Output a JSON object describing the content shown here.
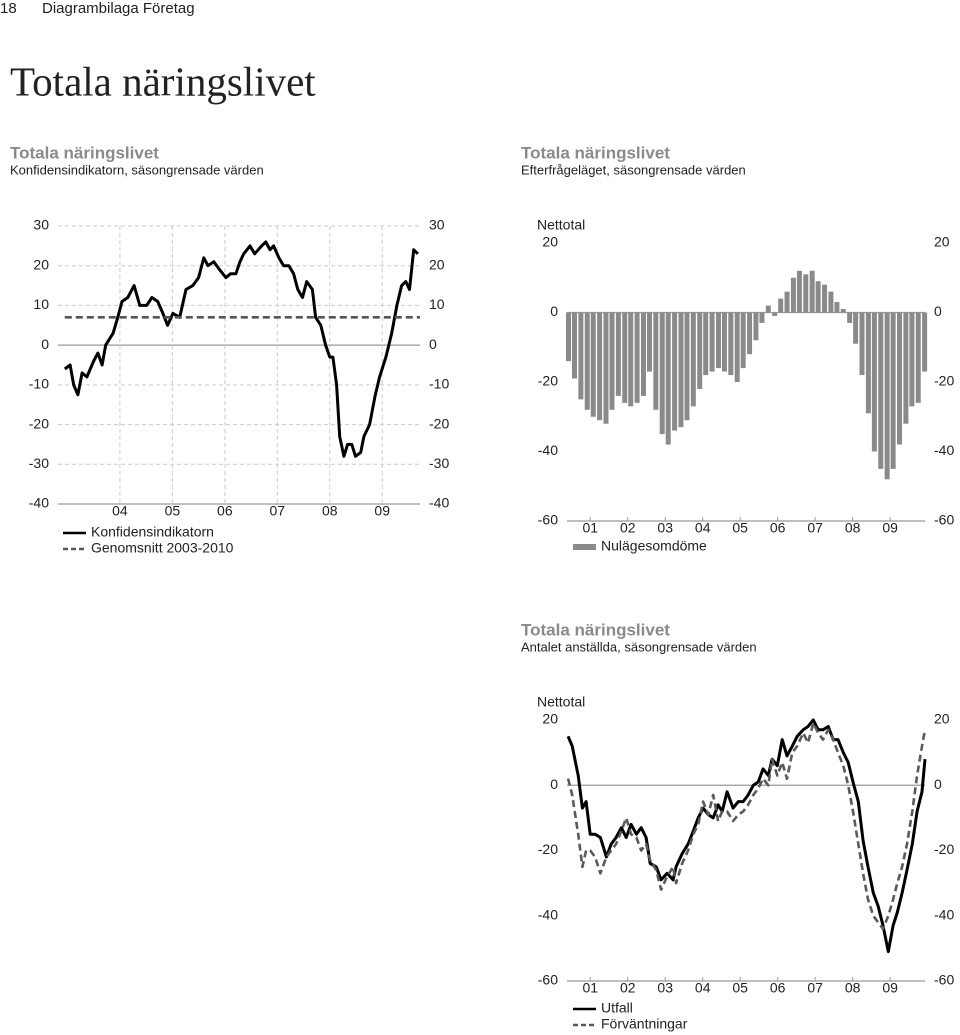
{
  "header": {
    "page_number": "18",
    "section": "Diagrambilaga Företag",
    "title": "Totala näringslivet"
  },
  "chart_data": [
    {
      "type": "line",
      "title": "Totala näringslivet",
      "subtitle": "Konfidensindikatorn, säsongrensade värden",
      "xlim": [
        2003.32,
        2010.22
      ],
      "xticks": [
        {
          "value": 2004.5,
          "label": "04"
        },
        {
          "value": 2005.5,
          "label": "05"
        },
        {
          "value": 2006.5,
          "label": "06"
        },
        {
          "value": 2007.5,
          "label": "07"
        },
        {
          "value": 2008.5,
          "label": "08"
        },
        {
          "value": 2009.5,
          "label": "09"
        }
      ],
      "ylim": [
        -40,
        30
      ],
      "yticks": [
        30,
        20,
        10,
        0,
        -10,
        -20,
        -30,
        -40
      ],
      "y2lim": [
        -40,
        30
      ],
      "y2ticks": [
        30,
        20,
        10,
        0,
        -10,
        -20,
        -30,
        -40
      ],
      "grid": true,
      "series": [
        {
          "name": "Konfidensindikatorn",
          "color": "#000000",
          "line_style": "solid",
          "x": [
            2003.45,
            2003.55,
            2003.62,
            2003.7,
            2003.78,
            2003.87,
            2004.0,
            2004.08,
            2004.16,
            2004.23,
            2004.37,
            2004.46,
            2004.54,
            2004.65,
            2004.77,
            2004.88,
            2005.01,
            2005.11,
            2005.22,
            2005.32,
            2005.41,
            2005.51,
            2005.64,
            2005.76,
            2005.89,
            2006.0,
            2006.1,
            2006.18,
            2006.29,
            2006.4,
            2006.52,
            2006.61,
            2006.71,
            2006.79,
            2006.86,
            2006.98,
            2007.07,
            2007.2,
            2007.28,
            2007.36,
            2007.43,
            2007.53,
            2007.62,
            2007.72,
            2007.81,
            2007.89,
            2007.98,
            2008.06,
            2008.17,
            2008.23,
            2008.33,
            2008.42,
            2008.5,
            2008.56,
            2008.63,
            2008.69,
            2008.77,
            2008.84,
            2008.92,
            2008.99,
            2009.09,
            2009.15,
            2009.26,
            2009.36,
            2009.45,
            2009.57,
            2009.68,
            2009.78,
            2009.87,
            2009.95,
            2010.02,
            2010.1,
            2010.18
          ],
          "values": [
            -6,
            -5,
            -10,
            -12.5,
            -7,
            -8,
            -4,
            -2,
            -5,
            0,
            3,
            7,
            11,
            12,
            15,
            10,
            10,
            12,
            11,
            8,
            5,
            8,
            7,
            14,
            15,
            17,
            22,
            20,
            21,
            19,
            17,
            18,
            18,
            21,
            23,
            25,
            23,
            25,
            26,
            24,
            25,
            22,
            20,
            20,
            18,
            14,
            12,
            16,
            14,
            7,
            5,
            0,
            -3,
            -3,
            -10,
            -23,
            -28,
            -25,
            -25,
            -28,
            -27,
            -23,
            -20,
            -13,
            -8,
            -3,
            3,
            10,
            15,
            16,
            14,
            24,
            23
          ]
        },
        {
          "name": "Genomsnitt 2003-2010",
          "color": "#555555",
          "line_style": "dashed",
          "x": [
            2003.45,
            2010.22
          ],
          "values": [
            7,
            7
          ]
        }
      ]
    },
    {
      "type": "bar",
      "title": "Totala näringslivet",
      "subtitle": "Efterfrågeläget, säsongrensade värden",
      "y_label": "Nettotal",
      "xlim": [
        2000.88,
        2010.43
      ],
      "xticks": [
        {
          "value": 2001.5,
          "label": "01"
        },
        {
          "value": 2002.5,
          "label": "02"
        },
        {
          "value": 2003.5,
          "label": "03"
        },
        {
          "value": 2004.5,
          "label": "04"
        },
        {
          "value": 2005.5,
          "label": "05"
        },
        {
          "value": 2006.5,
          "label": "06"
        },
        {
          "value": 2007.5,
          "label": "07"
        },
        {
          "value": 2008.5,
          "label": "08"
        },
        {
          "value": 2009.5,
          "label": "09"
        }
      ],
      "ylim": [
        -60,
        20
      ],
      "yticks": [
        20,
        0,
        -20,
        -40,
        -60
      ],
      "y2lim": [
        -60,
        20
      ],
      "y2ticks": [
        20,
        0,
        -20,
        -40,
        -60
      ],
      "grid": false,
      "series": [
        {
          "name": "Nulägesomdöme",
          "color": "#8a8a8a",
          "x": [
            2000.92,
            2001.08,
            2001.25,
            2001.42,
            2001.58,
            2001.75,
            2001.92,
            2002.08,
            2002.25,
            2002.42,
            2002.58,
            2002.75,
            2002.92,
            2003.08,
            2003.25,
            2003.42,
            2003.58,
            2003.75,
            2003.92,
            2004.08,
            2004.25,
            2004.42,
            2004.58,
            2004.75,
            2004.92,
            2005.08,
            2005.25,
            2005.42,
            2005.58,
            2005.75,
            2005.92,
            2006.08,
            2006.25,
            2006.42,
            2006.58,
            2006.75,
            2006.92,
            2007.08,
            2007.25,
            2007.42,
            2007.58,
            2007.75,
            2007.92,
            2008.08,
            2008.25,
            2008.42,
            2008.58,
            2008.75,
            2008.92,
            2009.08,
            2009.25,
            2009.42,
            2009.58,
            2009.75,
            2009.92,
            2010.08,
            2010.25,
            2010.42
          ],
          "values": [
            -14,
            -19,
            -25,
            -28,
            -30,
            -31,
            -32,
            -28,
            -24,
            -26,
            -27,
            -26,
            -24,
            -17,
            -28,
            -35,
            -38,
            -34,
            -33,
            -31,
            -27,
            -22,
            -18,
            -17,
            -16,
            -17,
            -18,
            -20,
            -16,
            -12,
            -8,
            -3,
            2,
            -1,
            4,
            6,
            10,
            12,
            11,
            12,
            9,
            8,
            6,
            3,
            1,
            -3,
            -9,
            -18,
            -29,
            -40,
            -45,
            -48,
            -45,
            -38,
            -32,
            -27,
            -26,
            -17
          ]
        }
      ]
    },
    {
      "type": "line",
      "title": "Totala näringslivet",
      "subtitle": "Antalet anställda, säsongrensade värden",
      "y_label": "Nettotal",
      "xlim": [
        2000.88,
        2010.43
      ],
      "xticks": [
        {
          "value": 2001.5,
          "label": "01"
        },
        {
          "value": 2002.5,
          "label": "02"
        },
        {
          "value": 2003.5,
          "label": "03"
        },
        {
          "value": 2004.5,
          "label": "04"
        },
        {
          "value": 2005.5,
          "label": "05"
        },
        {
          "value": 2006.5,
          "label": "06"
        },
        {
          "value": 2007.5,
          "label": "07"
        },
        {
          "value": 2008.5,
          "label": "08"
        },
        {
          "value": 2009.5,
          "label": "09"
        }
      ],
      "ylim": [
        -60,
        20
      ],
      "yticks": [
        20,
        0,
        -20,
        -40,
        -60
      ],
      "y2lim": [
        -60,
        20
      ],
      "y2ticks": [
        20,
        0,
        -20,
        -40,
        -60
      ],
      "grid": false,
      "x": [
        2000.91,
        2001.02,
        2001.18,
        2001.29,
        2001.39,
        2001.5,
        2001.63,
        2001.77,
        2001.93,
        2002.06,
        2002.19,
        2002.33,
        2002.46,
        2002.59,
        2002.73,
        2002.86,
        2002.99,
        2003.1,
        2003.26,
        2003.39,
        2003.55,
        2003.71,
        2003.79,
        2003.95,
        2004.11,
        2004.25,
        2004.38,
        2004.51,
        2004.65,
        2004.78,
        2004.91,
        2005.02,
        2005.15,
        2005.31,
        2005.45,
        2005.58,
        2005.71,
        2005.85,
        2005.98,
        2006.11,
        2006.25,
        2006.35,
        2006.49,
        2006.62,
        2006.75,
        2006.89,
        2007.02,
        2007.18,
        2007.31,
        2007.45,
        2007.58,
        2007.71,
        2007.85,
        2007.98,
        2008.11,
        2008.25,
        2008.38,
        2008.51,
        2008.65,
        2008.78,
        2008.91,
        2009.05,
        2009.18,
        2009.31,
        2009.45,
        2009.58,
        2009.69,
        2009.82,
        2009.95,
        2010.09,
        2010.22,
        2010.35,
        2010.43
      ],
      "series": [
        {
          "name": "Utfall",
          "color": "#000000",
          "line_style": "solid",
          "values": [
            15,
            12,
            3,
            -7,
            -5,
            -15,
            -15,
            -16,
            -22,
            -18,
            -16,
            -13,
            -16,
            -12,
            -15,
            -13,
            -16,
            -24,
            -25,
            -29,
            -27,
            -29,
            -25,
            -21,
            -18,
            -14,
            -10,
            -7,
            -9,
            -10,
            -6,
            -8,
            -2,
            -7,
            -5,
            -5,
            -3,
            0,
            1,
            5,
            3,
            8,
            6,
            14,
            9,
            12,
            15,
            17,
            18,
            20,
            17,
            17,
            18,
            14,
            14,
            10,
            7,
            1,
            -5,
            -17,
            -25,
            -33,
            -37,
            -43,
            -51,
            -43,
            -39,
            -33,
            -26,
            -18,
            -8,
            -2,
            8
          ]
        },
        {
          "name": "Förväntningar",
          "color": "#5a5a5a",
          "line_style": "dashed",
          "values": [
            2,
            -3,
            -15,
            -25,
            -20,
            -20,
            -22,
            -27,
            -22,
            -20,
            -18,
            -14,
            -10,
            -15,
            -16,
            -20,
            -18,
            -23,
            -26,
            -32,
            -28,
            -25,
            -30,
            -24,
            -20,
            -15,
            -12,
            -5,
            -9,
            -3,
            -11,
            -8,
            -8,
            -11,
            -9,
            -8,
            -6,
            -3,
            -1,
            2,
            0,
            8,
            3,
            7,
            2,
            10,
            12,
            16,
            13,
            19,
            16,
            14,
            17,
            14,
            10,
            6,
            0,
            -8,
            -18,
            -27,
            -35,
            -40,
            -42,
            -44,
            -40,
            -35,
            -30,
            -25,
            -18,
            -8,
            3,
            12,
            17
          ]
        }
      ]
    }
  ]
}
